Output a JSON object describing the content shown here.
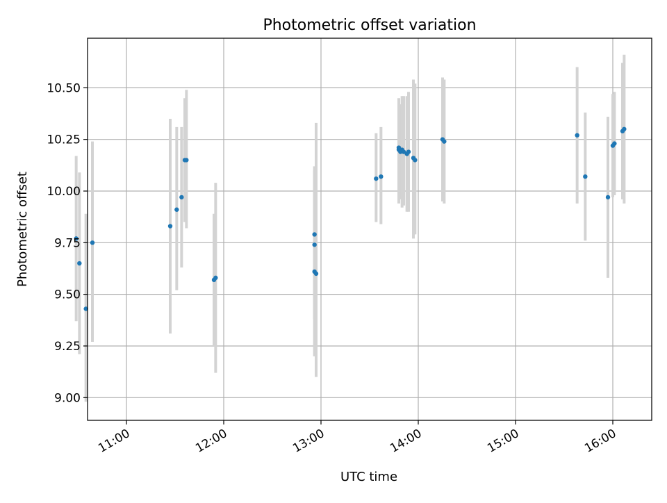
{
  "chart_data": {
    "type": "scatter",
    "title": "Photometric offset variation",
    "xlabel": "UTC time",
    "ylabel": "Photometric offset",
    "x_unit": "UTC time (HH:MM)",
    "xlim": [
      "10:36",
      "16:24"
    ],
    "ylim": [
      8.89,
      10.74
    ],
    "xticks": [
      "11:00",
      "12:00",
      "13:00",
      "14:00",
      "15:00",
      "16:00"
    ],
    "yticks": [
      "9.00",
      "9.25",
      "9.50",
      "9.75",
      "10.00",
      "10.25",
      "10.50"
    ],
    "grid": true,
    "legend": "none",
    "points": [
      {
        "x": "10:29",
        "y": 9.77,
        "yerr_low": 9.37,
        "yerr_high": 10.17
      },
      {
        "x": "10:31",
        "y": 9.65,
        "yerr_low": 9.21,
        "yerr_high": 10.09
      },
      {
        "x": "10:35",
        "y": 9.43,
        "yerr_low": 8.98,
        "yerr_high": 9.89
      },
      {
        "x": "10:39",
        "y": 9.75,
        "yerr_low": 9.27,
        "yerr_high": 10.24
      },
      {
        "x": "11:27",
        "y": 9.83,
        "yerr_low": 9.31,
        "yerr_high": 10.35
      },
      {
        "x": "11:31",
        "y": 9.91,
        "yerr_low": 9.52,
        "yerr_high": 10.31
      },
      {
        "x": "11:34",
        "y": 9.97,
        "yerr_low": 9.63,
        "yerr_high": 10.31
      },
      {
        "x": "11:36",
        "y": 10.15,
        "yerr_low": 9.85,
        "yerr_high": 10.45
      },
      {
        "x": "11:37",
        "y": 10.15,
        "yerr_low": 9.82,
        "yerr_high": 10.49
      },
      {
        "x": "11:54",
        "y": 9.57,
        "yerr_low": 9.25,
        "yerr_high": 9.89
      },
      {
        "x": "11:55",
        "y": 9.58,
        "yerr_low": 9.12,
        "yerr_high": 10.04
      },
      {
        "x": "12:56",
        "y": 9.79,
        "yerr_low": 9.46,
        "yerr_high": 10.12
      },
      {
        "x": "12:56",
        "y": 9.74,
        "yerr_low": 9.38,
        "yerr_high": 10.1
      },
      {
        "x": "12:56",
        "y": 9.61,
        "yerr_low": 9.2,
        "yerr_high": 10.02
      },
      {
        "x": "12:57",
        "y": 9.6,
        "yerr_low": 9.1,
        "yerr_high": 10.33
      },
      {
        "x": "13:34",
        "y": 10.06,
        "yerr_low": 9.85,
        "yerr_high": 10.28
      },
      {
        "x": "13:37",
        "y": 10.07,
        "yerr_low": 9.84,
        "yerr_high": 10.31
      },
      {
        "x": "13:48",
        "y": 10.2,
        "yerr_low": 9.95,
        "yerr_high": 10.45
      },
      {
        "x": "13:48",
        "y": 10.21,
        "yerr_low": 9.94,
        "yerr_high": 10.44
      },
      {
        "x": "13:49",
        "y": 10.19,
        "yerr_low": 9.96,
        "yerr_high": 10.42
      },
      {
        "x": "13:50",
        "y": 10.2,
        "yerr_low": 9.92,
        "yerr_high": 10.46
      },
      {
        "x": "13:51",
        "y": 10.19,
        "yerr_low": 9.93,
        "yerr_high": 10.46
      },
      {
        "x": "13:53",
        "y": 10.18,
        "yerr_low": 9.9,
        "yerr_high": 10.46
      },
      {
        "x": "13:54",
        "y": 10.19,
        "yerr_low": 9.9,
        "yerr_high": 10.48
      },
      {
        "x": "13:57",
        "y": 10.16,
        "yerr_low": 9.77,
        "yerr_high": 10.54
      },
      {
        "x": "13:58",
        "y": 10.15,
        "yerr_low": 9.79,
        "yerr_high": 10.52
      },
      {
        "x": "14:15",
        "y": 10.25,
        "yerr_low": 9.95,
        "yerr_high": 10.55
      },
      {
        "x": "14:16",
        "y": 10.24,
        "yerr_low": 9.94,
        "yerr_high": 10.54
      },
      {
        "x": "15:38",
        "y": 10.27,
        "yerr_low": 9.94,
        "yerr_high": 10.6
      },
      {
        "x": "15:43",
        "y": 10.07,
        "yerr_low": 9.76,
        "yerr_high": 10.38
      },
      {
        "x": "15:57",
        "y": 9.97,
        "yerr_low": 9.58,
        "yerr_high": 10.36
      },
      {
        "x": "16:00",
        "y": 10.22,
        "yerr_low": 9.97,
        "yerr_high": 10.47
      },
      {
        "x": "16:01",
        "y": 10.23,
        "yerr_low": 9.98,
        "yerr_high": 10.48
      },
      {
        "x": "16:06",
        "y": 10.29,
        "yerr_low": 9.96,
        "yerr_high": 10.62
      },
      {
        "x": "16:07",
        "y": 10.3,
        "yerr_low": 9.94,
        "yerr_high": 10.66
      }
    ],
    "colors": {
      "marker": "#1f77b4",
      "errorbar": "#d3d3d3",
      "grid": "#b0b0b0",
      "axes": "#000000"
    }
  }
}
